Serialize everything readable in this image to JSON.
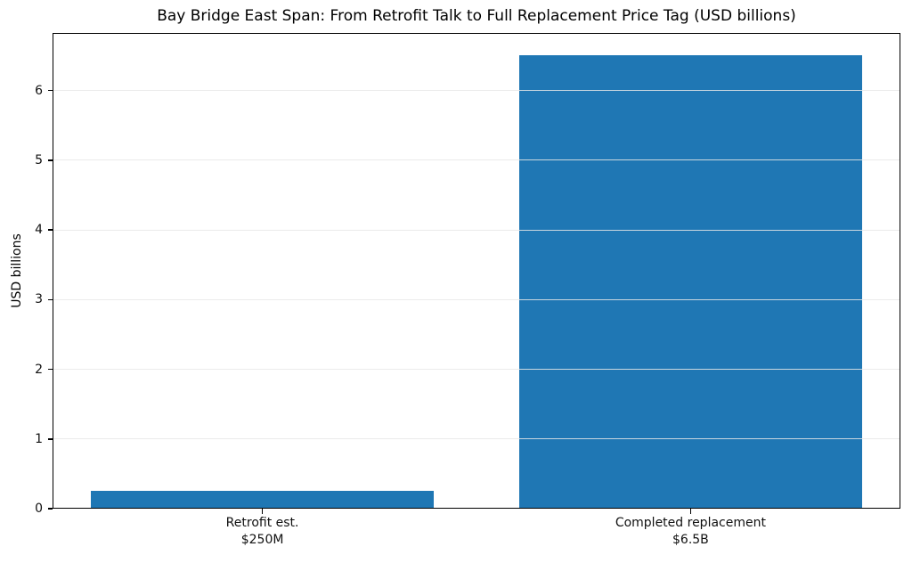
{
  "chart_data": {
    "type": "bar",
    "title": "Bay Bridge East Span: From Retrofit Talk to Full Replacement Price Tag (USD billions)",
    "ylabel": "USD billions",
    "xlabel": "",
    "categories": [
      {
        "label": "Retrofit est.",
        "sublabel": "$250M"
      },
      {
        "label": "Completed replacement",
        "sublabel": "$6.5B"
      }
    ],
    "x": [
      0,
      1
    ],
    "values": [
      0.25,
      6.5
    ],
    "yticks": [
      0,
      1,
      2,
      3,
      4,
      5,
      6
    ],
    "ylim": [
      0,
      6.825
    ],
    "xlim": [
      -0.49,
      1.49
    ],
    "bar_width": 0.8,
    "bar_color": "#1f77b4",
    "grid": {
      "axis": "y",
      "color": "#e8e8e8",
      "above_bars": true
    },
    "axes": {
      "spine_color": "#000000",
      "tick_color": "#000000",
      "label_color": "#111111"
    }
  }
}
